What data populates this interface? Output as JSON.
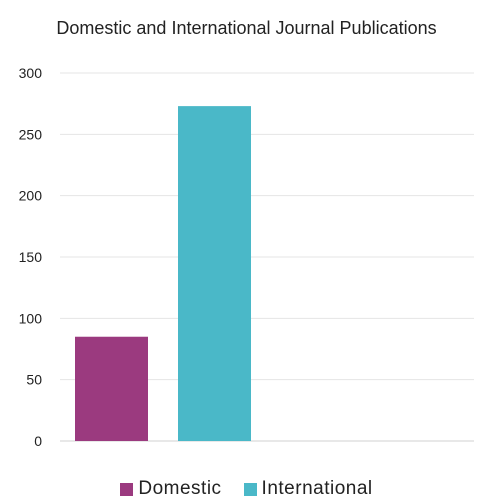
{
  "chart_data": {
    "type": "bar",
    "title": "Domestic and International Journal Publications",
    "xlabel": "",
    "ylabel": "",
    "ylim": [
      0,
      300
    ],
    "yticks": [
      0,
      50,
      100,
      150,
      200,
      250,
      300
    ],
    "grid": true,
    "legend_position": "bottom",
    "series": [
      {
        "name": "Domestic",
        "value": 85,
        "color": "#9b3a7f"
      },
      {
        "name": "International",
        "value": 273,
        "color": "#4ab8c8"
      }
    ]
  }
}
